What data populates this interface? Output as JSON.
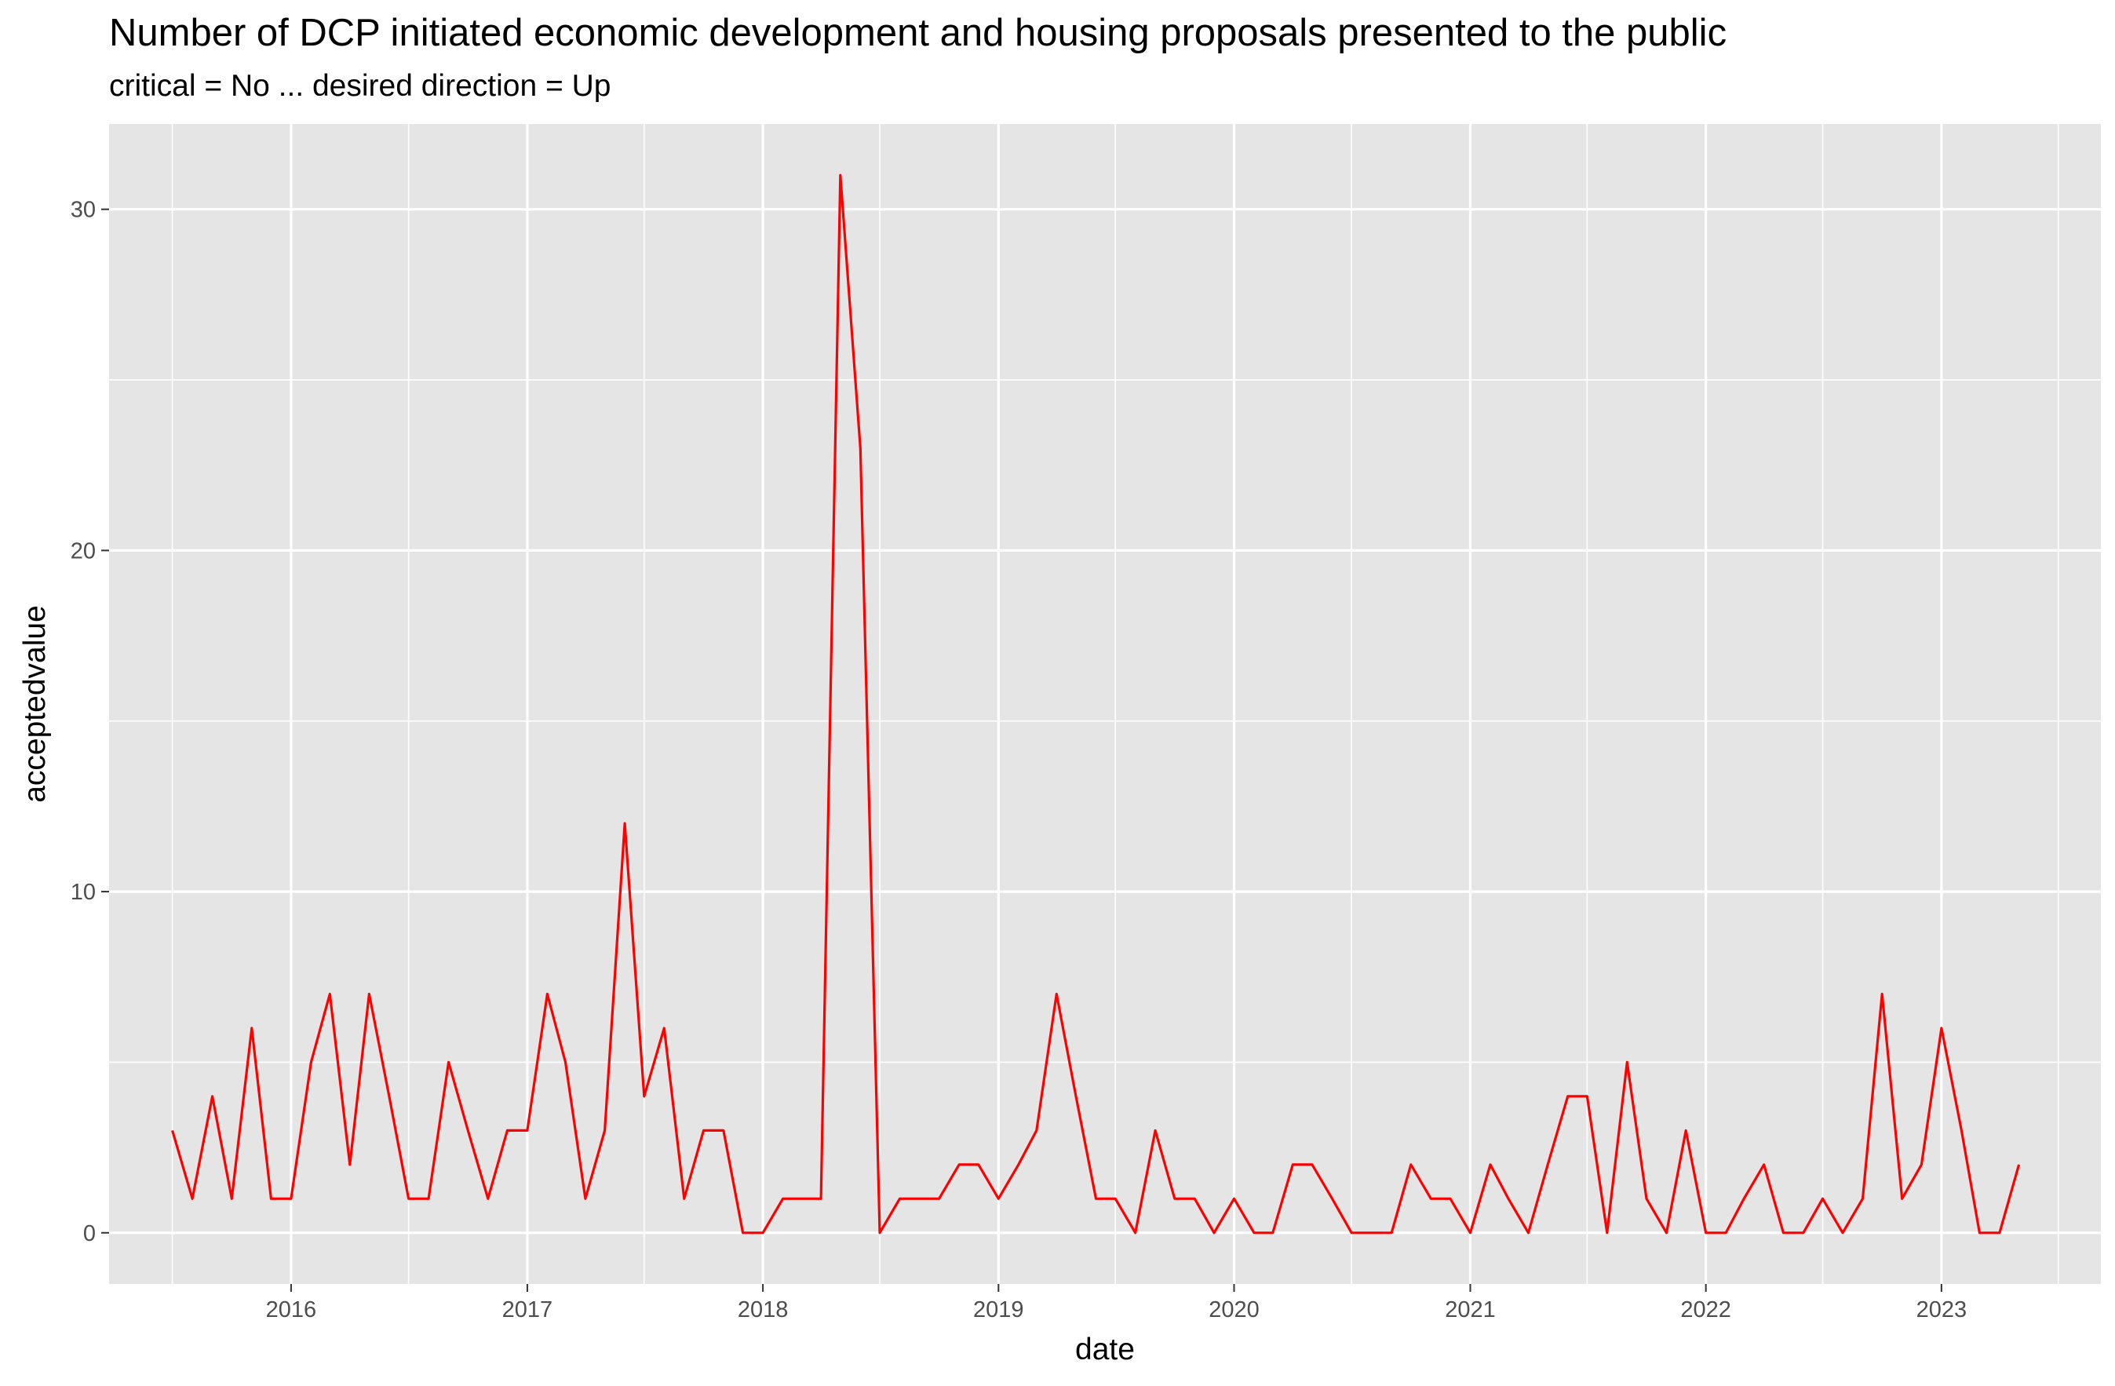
{
  "chart_data": {
    "type": "line",
    "title": "Number of DCP initiated economic development and housing proposals presented to the public",
    "subtitle": "critical = No ... desired direction = Up",
    "xlabel": "date",
    "ylabel": "acceptedvalue",
    "x_tick_labels": [
      "2016",
      "2017",
      "2018",
      "2019",
      "2020",
      "2021",
      "2022",
      "2023"
    ],
    "y_tick_labels": [
      "0",
      "10",
      "20",
      "30"
    ],
    "y_ticks": [
      0,
      10,
      20,
      30
    ],
    "ylim": [
      -1.5,
      32.5
    ],
    "xlim": [
      "2015-03-25",
      "2023-09-05"
    ],
    "grid": true,
    "line_color": "#ff0000",
    "panel_color": "#e5e5e5",
    "series": [
      {
        "x": [
          "2015-07-01",
          "2015-08-01",
          "2015-09-01",
          "2015-10-01",
          "2015-11-01",
          "2015-12-01",
          "2016-01-01",
          "2016-02-01",
          "2016-03-01",
          "2016-04-01",
          "2016-05-01",
          "2016-06-01",
          "2016-07-01",
          "2016-08-01",
          "2016-09-01",
          "2016-10-01",
          "2016-11-01",
          "2016-12-01",
          "2017-01-01",
          "2017-02-01",
          "2017-03-01",
          "2017-04-01",
          "2017-05-01",
          "2017-06-01",
          "2017-07-01",
          "2017-08-01",
          "2017-09-01",
          "2017-10-01",
          "2017-11-01",
          "2017-12-01",
          "2018-01-01",
          "2018-02-01",
          "2018-03-01",
          "2018-04-01",
          "2018-05-01",
          "2018-06-01",
          "2018-07-01",
          "2018-08-01",
          "2018-09-01",
          "2018-10-01",
          "2018-11-01",
          "2018-12-01",
          "2019-01-01",
          "2019-02-01",
          "2019-03-01",
          "2019-04-01",
          "2019-05-01",
          "2019-06-01",
          "2019-07-01",
          "2019-08-01",
          "2019-09-01",
          "2019-10-01",
          "2019-11-01",
          "2019-12-01",
          "2020-01-01",
          "2020-02-01",
          "2020-03-01",
          "2020-04-01",
          "2020-05-01",
          "2020-06-01",
          "2020-07-01",
          "2020-08-01",
          "2020-09-01",
          "2020-10-01",
          "2020-11-01",
          "2020-12-01",
          "2021-01-01",
          "2021-02-01",
          "2021-03-01",
          "2021-04-01",
          "2021-05-01",
          "2021-06-01",
          "2021-07-01",
          "2021-08-01",
          "2021-09-01",
          "2021-10-01",
          "2021-11-01",
          "2021-12-01",
          "2022-01-01",
          "2022-02-01",
          "2022-03-01",
          "2022-04-01",
          "2022-05-01",
          "2022-06-01",
          "2022-07-01",
          "2022-08-01",
          "2022-09-01",
          "2022-10-01",
          "2022-11-01",
          "2022-12-01",
          "2023-01-01",
          "2023-02-01",
          "2023-03-01",
          "2023-04-01",
          "2023-05-01"
        ],
        "y": [
          3,
          1,
          4,
          1,
          6,
          1,
          1,
          5,
          7,
          2,
          7,
          4,
          1,
          1,
          5,
          3,
          1,
          3,
          3,
          7,
          5,
          1,
          3,
          12,
          4,
          6,
          1,
          3,
          3,
          0,
          0,
          1,
          1,
          1,
          31,
          23,
          0,
          1,
          1,
          1,
          2,
          2,
          1,
          2,
          3,
          7,
          4,
          1,
          1,
          0,
          3,
          1,
          1,
          0,
          1,
          0,
          0,
          2,
          2,
          1,
          0,
          0,
          0,
          2,
          1,
          1,
          0,
          2,
          1,
          0,
          2,
          4,
          4,
          0,
          5,
          1,
          0,
          3,
          0,
          0,
          1,
          2,
          0,
          0,
          1,
          0,
          1,
          7,
          1,
          2,
          6,
          3,
          0,
          0,
          2
        ]
      }
    ]
  }
}
